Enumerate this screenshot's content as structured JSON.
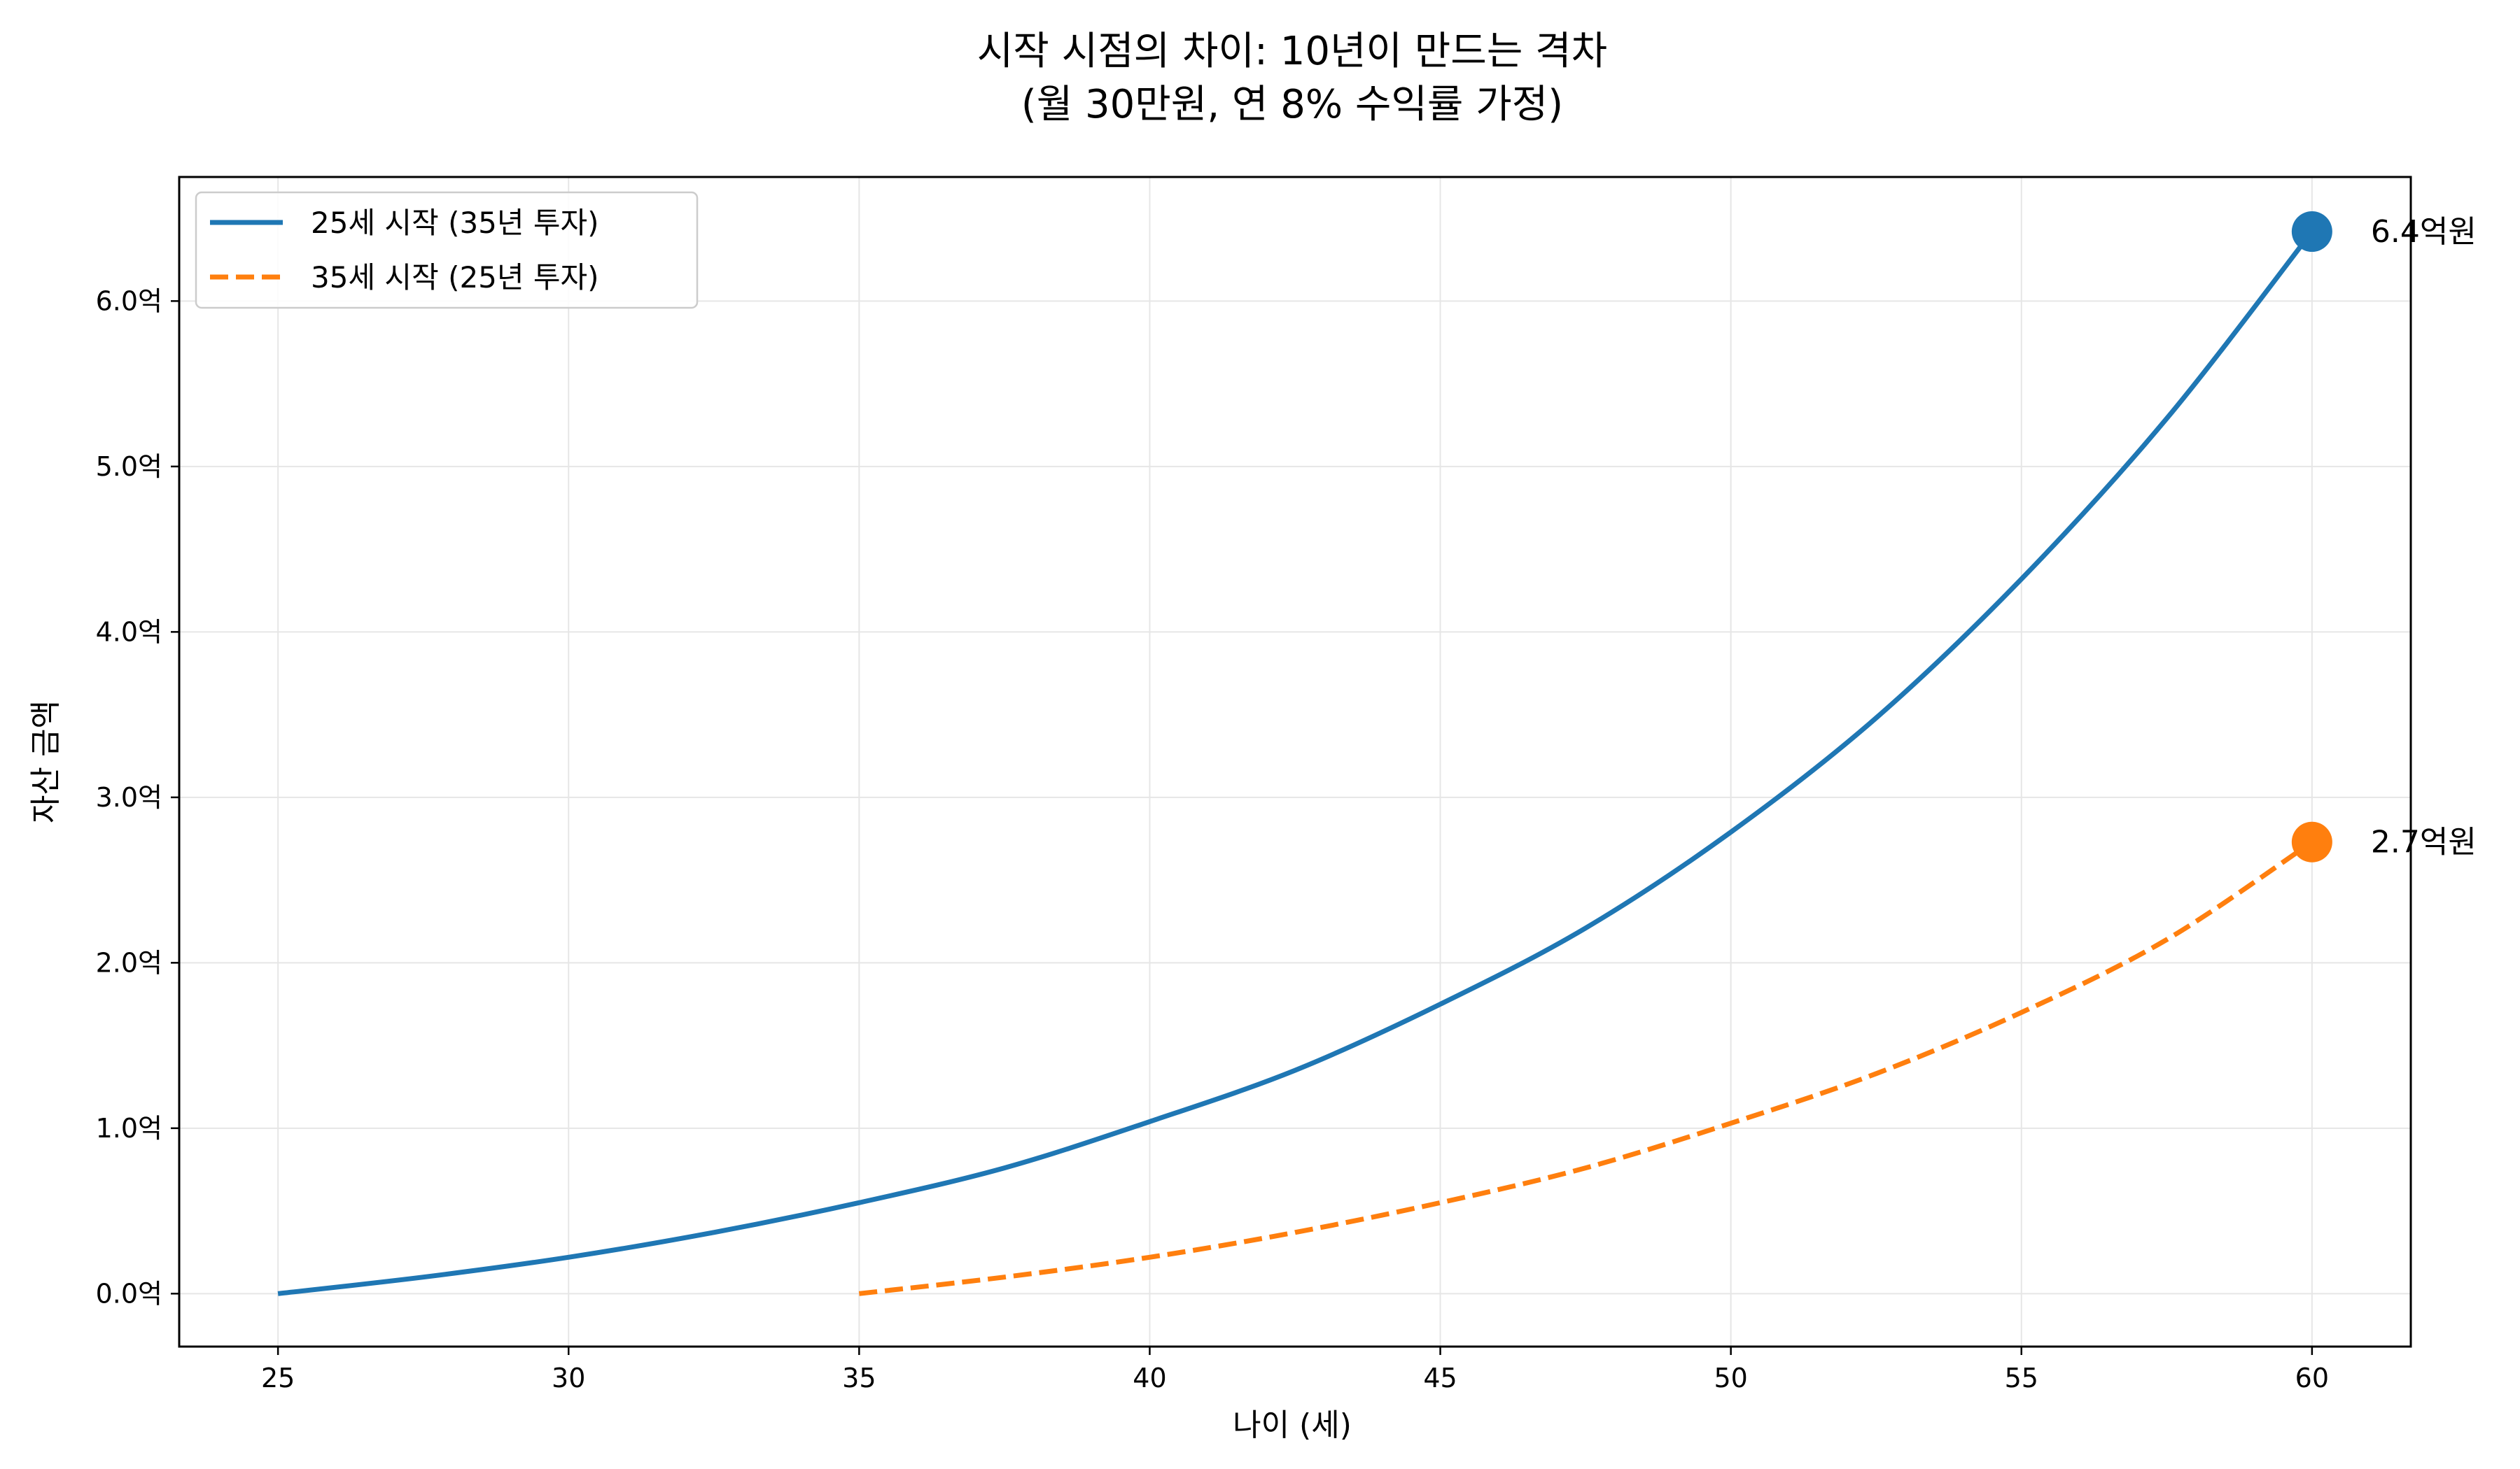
{
  "chart_data": {
    "type": "line",
    "title_lines": [
      "시작 시점의 차이: 10년이 만드는 격차",
      "(월 30만원, 연 8% 수익률 가정)"
    ],
    "xlabel": "나이 (세)",
    "ylabel": "자산 금액",
    "xlim": [
      23.3,
      61.7
    ],
    "ylim": [
      -0.32,
      6.75
    ],
    "x_ticks": [
      25,
      30,
      35,
      40,
      45,
      50,
      55,
      60
    ],
    "x_tick_labels": [
      "25",
      "30",
      "35",
      "40",
      "45",
      "50",
      "55",
      "60"
    ],
    "y_ticks": [
      0,
      1,
      2,
      3,
      4,
      5,
      6
    ],
    "y_tick_labels": [
      "0.0억",
      "1.0억",
      "2.0억",
      "3.0억",
      "4.0억",
      "5.0억",
      "6.0억"
    ],
    "grid": true,
    "legend_position": "top-left",
    "series": [
      {
        "name": "25세 시작 (35년 투자)",
        "color": "#1f77b4",
        "style": "solid",
        "x": [
          25,
          27.5,
          30,
          32.5,
          35,
          37.5,
          40,
          42.5,
          45,
          47.5,
          50,
          52.5,
          55,
          57.5,
          60
        ],
        "y": [
          0,
          0.1,
          0.22,
          0.37,
          0.55,
          0.76,
          1.04,
          1.35,
          1.75,
          2.21,
          2.79,
          3.48,
          4.32,
          5.29,
          6.42
        ],
        "end_label": "6.4억원"
      },
      {
        "name": "35세 시작 (25년 투자)",
        "color": "#ff7f0e",
        "style": "dashed",
        "x": [
          35,
          37.5,
          40,
          42.5,
          45,
          47.5,
          50,
          52.5,
          55,
          57.5,
          60
        ],
        "y": [
          0,
          0.1,
          0.22,
          0.37,
          0.55,
          0.76,
          1.03,
          1.33,
          1.7,
          2.14,
          2.73
        ],
        "end_label": "2.7억원"
      }
    ]
  }
}
